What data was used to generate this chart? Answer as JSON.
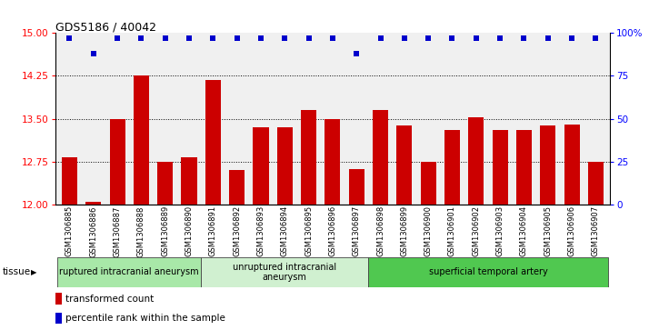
{
  "title": "GDS5186 / 40042",
  "samples": [
    "GSM1306885",
    "GSM1306886",
    "GSM1306887",
    "GSM1306888",
    "GSM1306889",
    "GSM1306890",
    "GSM1306891",
    "GSM1306892",
    "GSM1306893",
    "GSM1306894",
    "GSM1306895",
    "GSM1306896",
    "GSM1306897",
    "GSM1306898",
    "GSM1306899",
    "GSM1306900",
    "GSM1306901",
    "GSM1306902",
    "GSM1306903",
    "GSM1306904",
    "GSM1306905",
    "GSM1306906",
    "GSM1306907"
  ],
  "transformed_count": [
    12.82,
    12.05,
    13.5,
    14.25,
    12.75,
    12.82,
    14.18,
    12.6,
    13.35,
    13.35,
    13.65,
    13.5,
    12.62,
    13.65,
    13.38,
    12.75,
    13.3,
    13.52,
    13.3,
    13.3,
    13.38,
    13.4,
    12.75
  ],
  "percentile_rank": [
    97,
    88,
    97,
    97,
    97,
    97,
    97,
    97,
    97,
    97,
    97,
    97,
    88,
    97,
    97,
    97,
    97,
    97,
    97,
    97,
    97,
    97,
    97
  ],
  "ylim_left": [
    12,
    15
  ],
  "ylim_right": [
    0,
    100
  ],
  "yticks_left": [
    12,
    12.75,
    13.5,
    14.25,
    15
  ],
  "yticks_right": [
    0,
    25,
    50,
    75,
    100
  ],
  "ytick_labels_right": [
    "0",
    "25",
    "50",
    "75",
    "100%"
  ],
  "bar_color": "#cc0000",
  "dot_color": "#0000cc",
  "background_color": "#f0f0f0",
  "tissue_groups": [
    {
      "label": "ruptured intracranial aneurysm",
      "start": 0,
      "end": 6,
      "color": "#a8e8a8"
    },
    {
      "label": "unruptured intracranial\naneurysm",
      "start": 6,
      "end": 13,
      "color": "#d0f0d0"
    },
    {
      "label": "superficial temporal artery",
      "start": 13,
      "end": 23,
      "color": "#50c850"
    }
  ],
  "legend_bar_label": "transformed count",
  "legend_dot_label": "percentile rank within the sample",
  "tissue_label": "tissue",
  "bar_width": 0.65,
  "dot_size": 18
}
